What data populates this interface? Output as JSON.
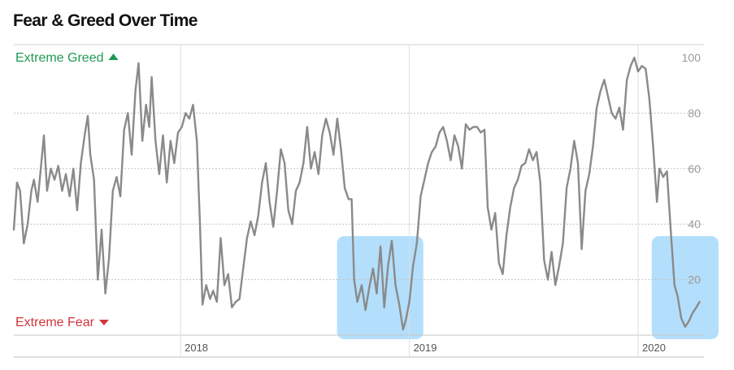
{
  "page_title": "Fear & Greed Over Time",
  "chart_data": {
    "type": "line",
    "title": "Fear & Greed Over Time",
    "xlabel": "",
    "ylabel": "",
    "ylim": [
      0,
      100
    ],
    "y_ticks": [
      20,
      40,
      60,
      80,
      100
    ],
    "x_ticks": [
      "2018",
      "2019",
      "2020"
    ],
    "xlim": [
      "2017-04-10",
      "2020-04-15"
    ],
    "grid": true,
    "legend": "none",
    "zone_labels": {
      "top": "Extreme Greed",
      "bottom": "Extreme Fear"
    },
    "colors": {
      "line": "#8a8a8a",
      "greed": "#1f9a54",
      "fear": "#d0353a",
      "highlight": "#a6d9fb",
      "grid": "#c4c4c4",
      "axis": "#9a9a9a"
    },
    "highlighted_periods": [
      [
        "2018-10-01",
        "2018-12-31"
      ],
      [
        "2020-02-15",
        "2020-04-15"
      ]
    ],
    "series": [
      {
        "values": [
          [
            "2017-04-10",
            38
          ],
          [
            "2017-04-15",
            55
          ],
          [
            "2017-04-20",
            52
          ],
          [
            "2017-04-26",
            33
          ],
          [
            "2017-05-02",
            40
          ],
          [
            "2017-05-08",
            52
          ],
          [
            "2017-05-12",
            56
          ],
          [
            "2017-05-18",
            48
          ],
          [
            "2017-05-23",
            60
          ],
          [
            "2017-05-28",
            72
          ],
          [
            "2017-06-02",
            52
          ],
          [
            "2017-06-08",
            60
          ],
          [
            "2017-06-14",
            56
          ],
          [
            "2017-06-20",
            61
          ],
          [
            "2017-06-26",
            52
          ],
          [
            "2017-07-02",
            58
          ],
          [
            "2017-07-08",
            50
          ],
          [
            "2017-07-14",
            60
          ],
          [
            "2017-07-20",
            45
          ],
          [
            "2017-07-26",
            62
          ],
          [
            "2017-08-01",
            72
          ],
          [
            "2017-08-06",
            79
          ],
          [
            "2017-08-10",
            65
          ],
          [
            "2017-08-16",
            56
          ],
          [
            "2017-08-22",
            20
          ],
          [
            "2017-08-28",
            38
          ],
          [
            "2017-09-03",
            15
          ],
          [
            "2017-09-09",
            28
          ],
          [
            "2017-09-15",
            52
          ],
          [
            "2017-09-21",
            57
          ],
          [
            "2017-09-27",
            50
          ],
          [
            "2017-10-03",
            74
          ],
          [
            "2017-10-09",
            80
          ],
          [
            "2017-10-15",
            65
          ],
          [
            "2017-10-21",
            88
          ],
          [
            "2017-10-26",
            98
          ],
          [
            "2017-11-01",
            70
          ],
          [
            "2017-11-07",
            83
          ],
          [
            "2017-11-12",
            75
          ],
          [
            "2017-11-16",
            93
          ],
          [
            "2017-11-22",
            70
          ],
          [
            "2017-11-28",
            58
          ],
          [
            "2017-12-04",
            72
          ],
          [
            "2017-12-10",
            55
          ],
          [
            "2017-12-16",
            70
          ],
          [
            "2017-12-22",
            62
          ],
          [
            "2017-12-28",
            73
          ],
          [
            "2018-01-03",
            75
          ],
          [
            "2018-01-09",
            80
          ],
          [
            "2018-01-15",
            78
          ],
          [
            "2018-01-21",
            83
          ],
          [
            "2018-01-27",
            70
          ],
          [
            "2018-02-01",
            40
          ],
          [
            "2018-02-05",
            11
          ],
          [
            "2018-02-11",
            18
          ],
          [
            "2018-02-17",
            13
          ],
          [
            "2018-02-22",
            16
          ],
          [
            "2018-02-28",
            12
          ],
          [
            "2018-03-06",
            35
          ],
          [
            "2018-03-12",
            18
          ],
          [
            "2018-03-18",
            22
          ],
          [
            "2018-03-24",
            10
          ],
          [
            "2018-03-30",
            12
          ],
          [
            "2018-04-05",
            13
          ],
          [
            "2018-04-11",
            24
          ],
          [
            "2018-04-17",
            35
          ],
          [
            "2018-04-23",
            41
          ],
          [
            "2018-04-29",
            36
          ],
          [
            "2018-05-05",
            43
          ],
          [
            "2018-05-11",
            55
          ],
          [
            "2018-05-17",
            62
          ],
          [
            "2018-05-23",
            48
          ],
          [
            "2018-05-29",
            39
          ],
          [
            "2018-06-04",
            52
          ],
          [
            "2018-06-10",
            67
          ],
          [
            "2018-06-16",
            62
          ],
          [
            "2018-06-22",
            45
          ],
          [
            "2018-06-28",
            40
          ],
          [
            "2018-07-04",
            52
          ],
          [
            "2018-07-10",
            55
          ],
          [
            "2018-07-16",
            62
          ],
          [
            "2018-07-22",
            75
          ],
          [
            "2018-07-28",
            60
          ],
          [
            "2018-08-03",
            66
          ],
          [
            "2018-08-09",
            58
          ],
          [
            "2018-08-15",
            72
          ],
          [
            "2018-08-21",
            78
          ],
          [
            "2018-08-27",
            73
          ],
          [
            "2018-09-02",
            65
          ],
          [
            "2018-09-08",
            78
          ],
          [
            "2018-09-14",
            67
          ],
          [
            "2018-09-20",
            53
          ],
          [
            "2018-09-26",
            49
          ],
          [
            "2018-10-01",
            49
          ],
          [
            "2018-10-05",
            20
          ],
          [
            "2018-10-10",
            12
          ],
          [
            "2018-10-17",
            18
          ],
          [
            "2018-10-23",
            9
          ],
          [
            "2018-10-29",
            17
          ],
          [
            "2018-11-04",
            24
          ],
          [
            "2018-11-10",
            15
          ],
          [
            "2018-11-16",
            32
          ],
          [
            "2018-11-22",
            10
          ],
          [
            "2018-11-28",
            25
          ],
          [
            "2018-12-04",
            34
          ],
          [
            "2018-12-10",
            18
          ],
          [
            "2018-12-16",
            11
          ],
          [
            "2018-12-22",
            2
          ],
          [
            "2018-12-26",
            5
          ],
          [
            "2019-01-01",
            12
          ],
          [
            "2019-01-07",
            25
          ],
          [
            "2019-01-13",
            33
          ],
          [
            "2019-01-19",
            50
          ],
          [
            "2019-01-25",
            56
          ],
          [
            "2019-01-31",
            62
          ],
          [
            "2019-02-06",
            66
          ],
          [
            "2019-02-12",
            68
          ],
          [
            "2019-02-18",
            73
          ],
          [
            "2019-02-24",
            75
          ],
          [
            "2019-03-02",
            70
          ],
          [
            "2019-03-08",
            63
          ],
          [
            "2019-03-14",
            72
          ],
          [
            "2019-03-20",
            68
          ],
          [
            "2019-03-26",
            60
          ],
          [
            "2019-04-01",
            76
          ],
          [
            "2019-04-07",
            74
          ],
          [
            "2019-04-13",
            75
          ],
          [
            "2019-04-19",
            75
          ],
          [
            "2019-04-25",
            73
          ],
          [
            "2019-05-01",
            74
          ],
          [
            "2019-05-06",
            46
          ],
          [
            "2019-05-12",
            38
          ],
          [
            "2019-05-18",
            44
          ],
          [
            "2019-05-24",
            26
          ],
          [
            "2019-05-30",
            22
          ],
          [
            "2019-06-05",
            36
          ],
          [
            "2019-06-11",
            46
          ],
          [
            "2019-06-17",
            53
          ],
          [
            "2019-06-23",
            56
          ],
          [
            "2019-06-29",
            61
          ],
          [
            "2019-07-05",
            62
          ],
          [
            "2019-07-11",
            67
          ],
          [
            "2019-07-17",
            63
          ],
          [
            "2019-07-23",
            66
          ],
          [
            "2019-07-29",
            55
          ],
          [
            "2019-08-04",
            27
          ],
          [
            "2019-08-10",
            20
          ],
          [
            "2019-08-16",
            30
          ],
          [
            "2019-08-22",
            18
          ],
          [
            "2019-08-28",
            25
          ],
          [
            "2019-09-03",
            33
          ],
          [
            "2019-09-09",
            53
          ],
          [
            "2019-09-15",
            60
          ],
          [
            "2019-09-21",
            70
          ],
          [
            "2019-09-27",
            62
          ],
          [
            "2019-10-03",
            31
          ],
          [
            "2019-10-09",
            52
          ],
          [
            "2019-10-15",
            58
          ],
          [
            "2019-10-21",
            68
          ],
          [
            "2019-10-27",
            82
          ],
          [
            "2019-11-02",
            88
          ],
          [
            "2019-11-08",
            92
          ],
          [
            "2019-11-14",
            86
          ],
          [
            "2019-11-20",
            80
          ],
          [
            "2019-11-26",
            78
          ],
          [
            "2019-12-02",
            82
          ],
          [
            "2019-12-08",
            74
          ],
          [
            "2019-12-14",
            92
          ],
          [
            "2019-12-20",
            97
          ],
          [
            "2019-12-26",
            100
          ],
          [
            "2020-01-01",
            95
          ],
          [
            "2020-01-07",
            97
          ],
          [
            "2020-01-13",
            96
          ],
          [
            "2020-01-19",
            85
          ],
          [
            "2020-01-25",
            68
          ],
          [
            "2020-01-31",
            48
          ],
          [
            "2020-02-04",
            60
          ],
          [
            "2020-02-10",
            57
          ],
          [
            "2020-02-16",
            59
          ],
          [
            "2020-02-22",
            38
          ],
          [
            "2020-02-28",
            18
          ],
          [
            "2020-03-04",
            14
          ],
          [
            "2020-03-10",
            6
          ],
          [
            "2020-03-16",
            3
          ],
          [
            "2020-03-22",
            5
          ],
          [
            "2020-03-28",
            8
          ],
          [
            "2020-04-03",
            10
          ],
          [
            "2020-04-08",
            12
          ]
        ]
      }
    ]
  }
}
